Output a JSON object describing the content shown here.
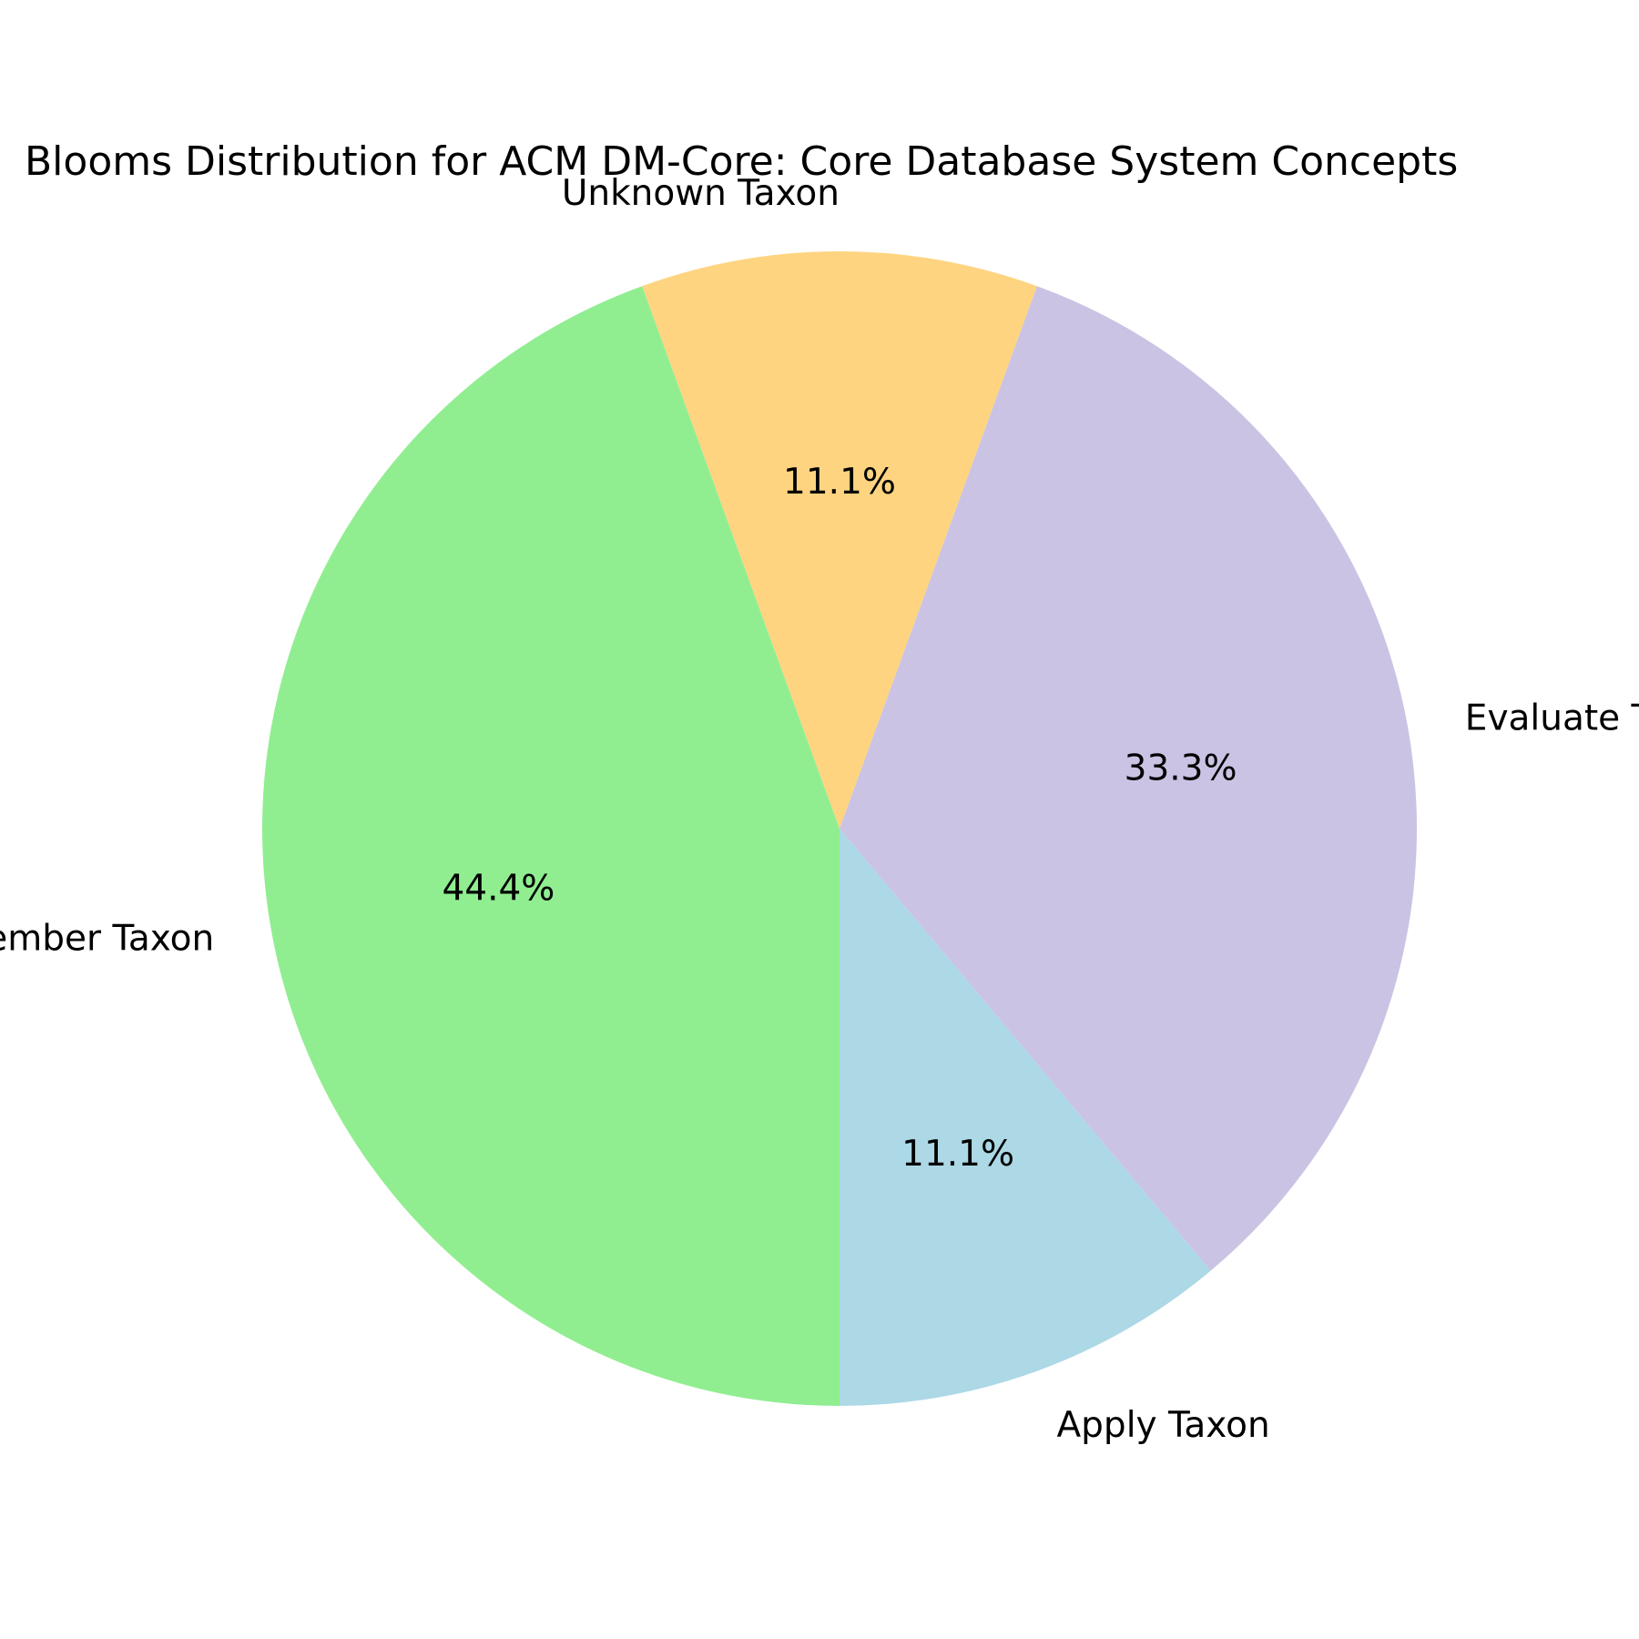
{
  "chart_data": {
    "type": "pie",
    "title": "Blooms Distribution for ACM DM-Core: Core Database System Concepts",
    "start_angle_deg": -70,
    "direction": "clockwise",
    "slices": [
      {
        "label": "Evaluate Taxon",
        "value": 33.3,
        "pct_label": "33.3%",
        "color": "#cbc3e3"
      },
      {
        "label": "Apply Taxon",
        "value": 11.1,
        "pct_label": "11.1%",
        "color": "#add8e6"
      },
      {
        "label": "Remember Taxon",
        "value": 44.4,
        "pct_label": "44.4%",
        "color": "#90ee90"
      },
      {
        "label": "Unknown Taxon",
        "value": 11.1,
        "pct_label": "11.1%",
        "color": "#fed481"
      }
    ]
  }
}
